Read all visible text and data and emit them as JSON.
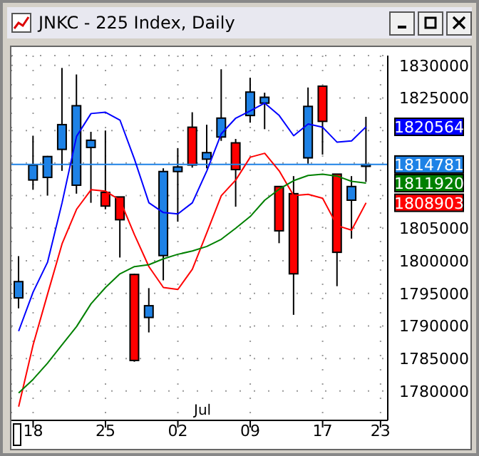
{
  "chart_data": {
    "type": "candlestick",
    "title": "JNKC - 225 Index, Daily",
    "categories": [
      null,
      "18",
      null,
      null,
      null,
      null,
      "25",
      null,
      null,
      null,
      null,
      "02",
      null,
      null,
      null,
      null,
      "09",
      null,
      null,
      null,
      null,
      "17",
      null,
      null,
      null,
      "23"
    ],
    "ohlc": [
      [
        1794300,
        1800700,
        1792700,
        1796800
      ],
      [
        1812400,
        1819200,
        1810900,
        1814700
      ],
      [
        1812800,
        1816100,
        1810000,
        1816000
      ],
      [
        1817100,
        1829600,
        1813800,
        1820900
      ],
      [
        1811600,
        1828600,
        1810300,
        1823800
      ],
      [
        1817400,
        1819800,
        1808900,
        1818500
      ],
      [
        1810500,
        1820000,
        1807900,
        1808400
      ],
      [
        1809800,
        1809800,
        1800500,
        1806300
      ],
      [
        1797900,
        1798000,
        1784500,
        1784700
      ],
      [
        1791300,
        1795800,
        1789000,
        1793100
      ],
      [
        1800800,
        1814200,
        1797000,
        1813700
      ],
      [
        1813700,
        1817300,
        1806000,
        1814400
      ],
      [
        1820500,
        1822800,
        1814300,
        1814700
      ],
      [
        1815600,
        1820900,
        1814200,
        1816600
      ],
      [
        1819000,
        1829400,
        1818400,
        1821900
      ],
      [
        1818100,
        1818700,
        1808300,
        1814000
      ],
      [
        1822300,
        1828100,
        1821200,
        1825900
      ],
      [
        1824200,
        1825800,
        1820200,
        1825100
      ],
      [
        1811400,
        1811400,
        1802700,
        1804600
      ],
      [
        1810300,
        1813000,
        1791700,
        1798000
      ],
      [
        1815800,
        1826600,
        1814900,
        1823700
      ],
      [
        1826800,
        1826800,
        1816300,
        1821400
      ],
      [
        1813300,
        1813300,
        1796100,
        1801300
      ],
      [
        1809300,
        1813000,
        1803400,
        1811400
      ],
      [
        1814500,
        1822100,
        1812100,
        1814781
      ],
      null
    ],
    "colors": [
      "#1e82e6",
      "#1e82e6",
      "#1e82e6",
      "#1e82e6",
      "#1e82e6",
      "#1e82e6",
      "#ff0000",
      "#ff0000",
      "#ff0000",
      "#1e82e6",
      "#1e82e6",
      "#1e82e6",
      "#ff0000",
      "#1e82e6",
      "#1e82e6",
      "#ff0000",
      "#1e82e6",
      "#1e82e6",
      "#ff0000",
      "#ff0000",
      "#1e82e6",
      "#ff0000",
      "#ff0000",
      "#1e82e6",
      "#1e82e6",
      null
    ],
    "series": [
      {
        "type": "line",
        "color": "#0000ff",
        "values": [
          1789200,
          1795200,
          1799800,
          1808900,
          1819100,
          1822600,
          1822800,
          1821600,
          1815600,
          1808900,
          1807400,
          1807200,
          1808900,
          1813800,
          1819500,
          1821900,
          1823000,
          1824200,
          1822300,
          1819200,
          1821000,
          1820500,
          1818200,
          1818400,
          1820564,
          null
        ],
        "value_labels": [
          null,
          null,
          null,
          null,
          null,
          null,
          null,
          null,
          null,
          null,
          null,
          null,
          null,
          null,
          null,
          null,
          null,
          null,
          null,
          null,
          null,
          null,
          null,
          null,
          "1820564",
          null
        ]
      },
      {
        "type": "line",
        "color": "#ff0000",
        "values": [
          1777600,
          1787100,
          1794900,
          1802600,
          1807900,
          1810900,
          1810700,
          1809300,
          1804000,
          1799100,
          1795900,
          1795600,
          1798700,
          1804300,
          1810000,
          1812400,
          1815900,
          1816500,
          1813800,
          1810000,
          1810200,
          1809600,
          1805400,
          1804700,
          1808903,
          null
        ],
        "value_labels": [
          null,
          null,
          null,
          null,
          null,
          null,
          null,
          null,
          null,
          null,
          null,
          null,
          null,
          null,
          null,
          null,
          null,
          null,
          null,
          null,
          null,
          null,
          null,
          null,
          "1808903",
          null
        ]
      },
      {
        "type": "line",
        "color": "#008000",
        "values": [
          1779700,
          1781800,
          1784300,
          1787100,
          1789900,
          1793400,
          1795900,
          1798000,
          1799100,
          1799400,
          1800300,
          1801000,
          1801500,
          1802200,
          1803300,
          1805000,
          1806800,
          1809300,
          1811000,
          1812300,
          1813100,
          1813300,
          1813000,
          1812200,
          1811920,
          null
        ],
        "value_labels": [
          null,
          null,
          null,
          null,
          null,
          null,
          null,
          null,
          null,
          null,
          null,
          null,
          null,
          null,
          null,
          null,
          null,
          null,
          null,
          null,
          null,
          null,
          null,
          null,
          "1811920",
          null
        ]
      }
    ],
    "ylim": [
      1775500,
      1831500
    ],
    "yticks": [
      1780000,
      1785000,
      1790000,
      1795000,
      1800000,
      1805000,
      {
        "value": 1810000,
        "label": null
      },
      {
        "value": 1815000,
        "label": null
      },
      {
        "value": 1820000,
        "label": null
      },
      1825000,
      1830000
    ],
    "grid": true,
    "ref_lines": [
      {
        "axis": "y",
        "value": 1814781,
        "label": "1814781",
        "color": "#1e82e6"
      }
    ],
    "annotations": [
      "Jul"
    ]
  }
}
